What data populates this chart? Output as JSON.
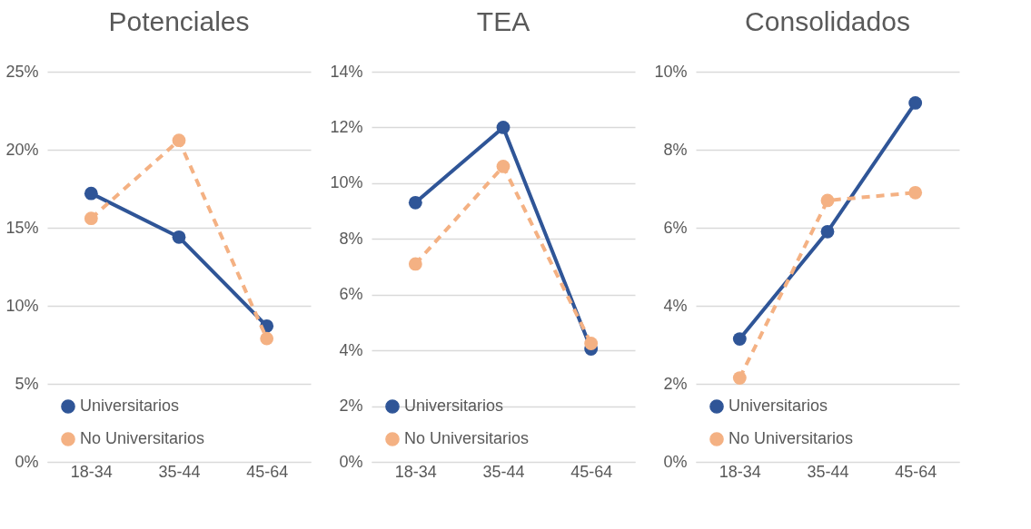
{
  "chart_data": [
    {
      "type": "line",
      "title": "Potenciales",
      "categories": [
        "18-34",
        "35-44",
        "45-64"
      ],
      "series": [
        {
          "name": "Universitarios",
          "color": "#2f5597",
          "line_style": "solid",
          "values": [
            17.2,
            14.4,
            8.7
          ]
        },
        {
          "name": "No Universitarios",
          "color": "#f4b183",
          "line_style": "dashed",
          "values": [
            15.6,
            20.6,
            7.9
          ]
        }
      ],
      "ylim": [
        0,
        25
      ],
      "yticks": [
        {
          "value": 0,
          "label": "0%"
        },
        {
          "value": 5,
          "label": "5%"
        },
        {
          "value": 10,
          "label": "10%"
        },
        {
          "value": 15,
          "label": "15%"
        },
        {
          "value": 20,
          "label": "20%"
        },
        {
          "value": 25,
          "label": "25%"
        }
      ],
      "grid": "y",
      "legend": "bottom left",
      "marker": "circle"
    },
    {
      "type": "line",
      "title": "TEA",
      "categories": [
        "18-34",
        "35-44",
        "45-64"
      ],
      "series": [
        {
          "name": "Universitarios",
          "color": "#2f5597",
          "line_style": "solid",
          "values": [
            9.3,
            12.0,
            4.05
          ]
        },
        {
          "name": "No Universitarios",
          "color": "#f4b183",
          "line_style": "dashed",
          "values": [
            7.1,
            10.6,
            4.25
          ]
        }
      ],
      "ylim": [
        0,
        14
      ],
      "yticks": [
        {
          "value": 0,
          "label": "0%"
        },
        {
          "value": 2,
          "label": "2%"
        },
        {
          "value": 4,
          "label": "4%"
        },
        {
          "value": 6,
          "label": "6%"
        },
        {
          "value": 8,
          "label": "8%"
        },
        {
          "value": 10,
          "label": "10%"
        },
        {
          "value": 12,
          "label": "12%"
        },
        {
          "value": 14,
          "label": "14%"
        }
      ],
      "grid": "y",
      "legend": "bottom left",
      "marker": "circle"
    },
    {
      "type": "line",
      "title": "Consolidados",
      "categories": [
        "18-34",
        "35-44",
        "45-64"
      ],
      "series": [
        {
          "name": "Universitarios",
          "color": "#2f5597",
          "line_style": "solid",
          "values": [
            3.15,
            5.9,
            9.2
          ]
        },
        {
          "name": "No Universitarios",
          "color": "#f4b183",
          "line_style": "dashed",
          "values": [
            2.15,
            6.7,
            6.9
          ]
        }
      ],
      "ylim": [
        0,
        10
      ],
      "yticks": [
        {
          "value": 0,
          "label": "0%"
        },
        {
          "value": 2,
          "label": "2%"
        },
        {
          "value": 4,
          "label": "4%"
        },
        {
          "value": 6,
          "label": "6%"
        },
        {
          "value": 8,
          "label": "8%"
        },
        {
          "value": 10,
          "label": "10%"
        }
      ],
      "grid": "y",
      "legend": "bottom left",
      "marker": "circle"
    }
  ]
}
